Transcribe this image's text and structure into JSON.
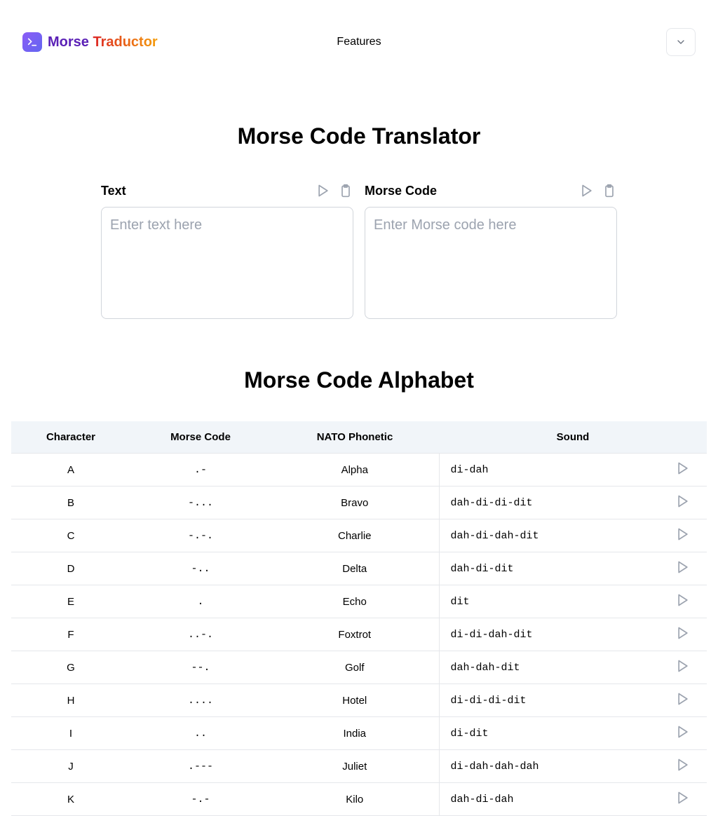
{
  "header": {
    "brand_a": "Morse",
    "brand_b": "Traductor",
    "nav_features": "Features"
  },
  "page": {
    "title": "Morse Code Translator",
    "alphabet_title": "Morse Code Alphabet"
  },
  "panels": {
    "text": {
      "label": "Text",
      "placeholder": "Enter text here"
    },
    "morse": {
      "label": "Morse Code",
      "placeholder": "Enter Morse code here"
    }
  },
  "table": {
    "columns": {
      "character": "Character",
      "morse": "Morse Code",
      "nato": "NATO Phonetic",
      "sound": "Sound"
    },
    "rows": [
      {
        "char": "A",
        "morse": ".-",
        "nato": "Alpha",
        "sound": "di-dah"
      },
      {
        "char": "B",
        "morse": "-...",
        "nato": "Bravo",
        "sound": "dah-di-di-dit"
      },
      {
        "char": "C",
        "morse": "-.-.",
        "nato": "Charlie",
        "sound": "dah-di-dah-dit"
      },
      {
        "char": "D",
        "morse": "-..",
        "nato": "Delta",
        "sound": "dah-di-dit"
      },
      {
        "char": "E",
        "morse": ".",
        "nato": "Echo",
        "sound": "dit"
      },
      {
        "char": "F",
        "morse": "..-.",
        "nato": "Foxtrot",
        "sound": "di-di-dah-dit"
      },
      {
        "char": "G",
        "morse": "--.",
        "nato": "Golf",
        "sound": "dah-dah-dit"
      },
      {
        "char": "H",
        "morse": "....",
        "nato": "Hotel",
        "sound": "di-di-di-dit"
      },
      {
        "char": "I",
        "morse": "..",
        "nato": "India",
        "sound": "di-dit"
      },
      {
        "char": "J",
        "morse": ".---",
        "nato": "Juliet",
        "sound": "di-dah-dah-dah"
      },
      {
        "char": "K",
        "morse": "-.-",
        "nato": "Kilo",
        "sound": "dah-di-dah"
      }
    ]
  },
  "colors": {
    "border": "#e5e7eb",
    "header_bg": "#f1f5f9",
    "placeholder": "#9ca3af",
    "icon_stroke": "#9ca3af"
  }
}
